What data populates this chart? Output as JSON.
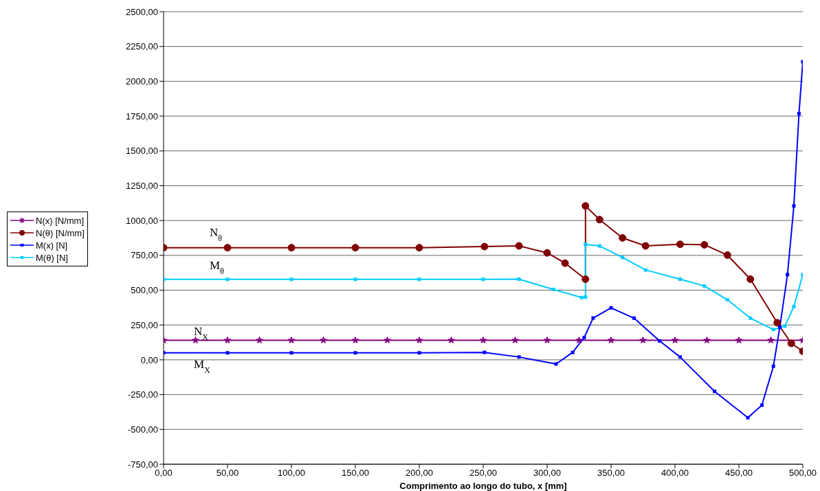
{
  "chart_data": {
    "type": "line",
    "xlabel": "Comprimento ao longo do tubo, x [mm]",
    "xlim": [
      0,
      500
    ],
    "xticks": [
      {
        "value": 0,
        "label": "0,00"
      },
      {
        "value": 50,
        "label": "50,00"
      },
      {
        "value": 100,
        "label": "100,00"
      },
      {
        "value": 150,
        "label": "150,00"
      },
      {
        "value": 200,
        "label": "200,00"
      },
      {
        "value": 250,
        "label": "250,00"
      },
      {
        "value": 300,
        "label": "300,00"
      },
      {
        "value": 350,
        "label": "350,00"
      },
      {
        "value": 400,
        "label": "400,00"
      },
      {
        "value": 450,
        "label": "450,00"
      },
      {
        "value": 500,
        "label": "500,00"
      }
    ],
    "ylim": [
      -750,
      2500
    ],
    "yticks": [
      {
        "value": -750,
        "label": "-750,00"
      },
      {
        "value": -500,
        "label": "-500,00"
      },
      {
        "value": -250,
        "label": "-250,00"
      },
      {
        "value": 0,
        "label": "0,00"
      },
      {
        "value": 250,
        "label": "250,00"
      },
      {
        "value": 500,
        "label": "500,00"
      },
      {
        "value": 750,
        "label": "750,00"
      },
      {
        "value": 1000,
        "label": "1000,00"
      },
      {
        "value": 1250,
        "label": "1250,00"
      },
      {
        "value": 1500,
        "label": "1500,00"
      },
      {
        "value": 1750,
        "label": "1750,00"
      },
      {
        "value": 2000,
        "label": "2000,00"
      },
      {
        "value": 2250,
        "label": "2250,00"
      },
      {
        "value": 2500,
        "label": "2500,00"
      }
    ],
    "grid": "y",
    "legend": "left",
    "series": [
      {
        "name": "N(x) [N/mm]",
        "color": "#800080",
        "marker": "star",
        "x": [
          0,
          25,
          50,
          75,
          100,
          125,
          150,
          175,
          200,
          225,
          250,
          275,
          300,
          325,
          350,
          375,
          400,
          425,
          450,
          475,
          500
        ],
        "values": [
          140,
          140,
          140,
          140,
          140,
          140,
          140,
          140,
          140,
          140,
          140,
          140,
          140,
          140,
          140,
          140,
          140,
          140,
          140,
          140,
          140
        ]
      },
      {
        "name": "N(θ) [N/mm]",
        "color": "#800000",
        "marker": "circle",
        "x": [
          0,
          50,
          100,
          150,
          200,
          251,
          278,
          300,
          314,
          330,
          330,
          341,
          359,
          377,
          404,
          423,
          441,
          459,
          480,
          491,
          500
        ],
        "values": [
          805,
          805,
          805,
          805,
          805,
          813,
          818,
          768,
          694,
          579,
          1105,
          1007,
          875,
          818,
          829,
          826,
          752,
          579,
          266,
          118,
          61
        ]
      },
      {
        "name": "M(x) [N]",
        "color": "#0000ff",
        "marker": "square",
        "x": [
          0,
          50,
          100,
          150,
          200,
          251,
          278,
          307,
          320,
          329,
          336,
          350,
          368,
          388,
          404,
          431,
          457,
          468,
          477,
          482,
          488,
          493,
          497,
          500
        ],
        "values": [
          50,
          50,
          50,
          50,
          50,
          53,
          20,
          -30,
          53,
          160,
          300,
          373,
          299,
          135,
          20,
          -227,
          -416,
          -326,
          -46,
          234,
          612,
          1105,
          1768,
          2141
        ]
      },
      {
        "name": "M(θ) [N]",
        "color": "#00ccff",
        "marker": "square",
        "x": [
          0,
          50,
          100,
          150,
          200,
          250,
          278,
          305,
          327,
          330,
          330,
          341,
          359,
          377,
          404,
          423,
          441,
          459,
          477,
          486,
          493,
          500
        ],
        "values": [
          578,
          578,
          578,
          578,
          578,
          578,
          579,
          505,
          447,
          450,
          828,
          818,
          735,
          645,
          579,
          530,
          431,
          299,
          217,
          242,
          382,
          612
        ]
      }
    ],
    "annotations": [
      "N$_{θ}$",
      "M$_{θ}$",
      "N$_{X}$",
      "M$_{X}$"
    ]
  }
}
